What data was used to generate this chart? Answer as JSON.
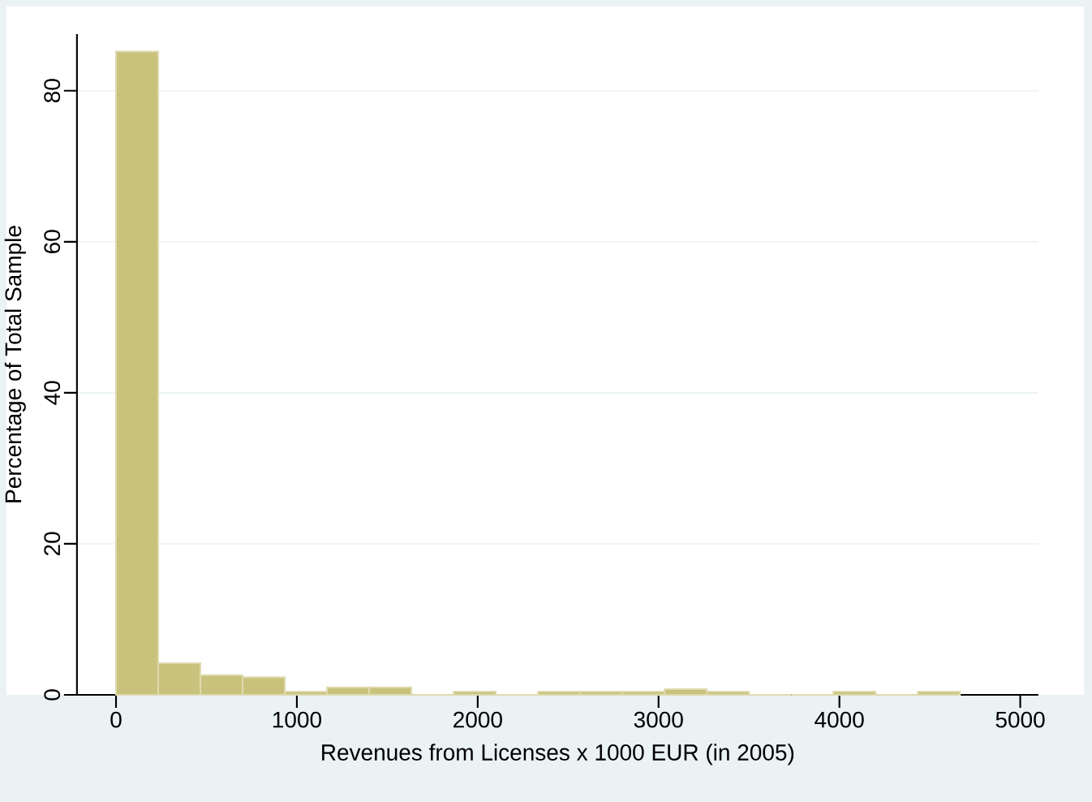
{
  "chart_data": {
    "type": "histogram",
    "xlabel": "Revenues from Licenses x 1000 EUR (in 2005)",
    "ylabel": "Percentage of Total Sample",
    "bins": [
      0,
      233.3,
      466.7,
      700,
      933.3,
      1166.7,
      1400,
      1633.3,
      1866.7,
      2100,
      2333.3,
      2566.7,
      2800,
      3033.3,
      3266.7,
      3500,
      3733.3,
      3966.7,
      4200,
      4433.3,
      4666.7
    ],
    "values": [
      85.2,
      4.2,
      2.6,
      2.35,
      0.43,
      1.0,
      1.0,
      0,
      0.43,
      0,
      0.43,
      0.43,
      0.43,
      0.75,
      0.43,
      0,
      0,
      0.43,
      0,
      0.43
    ],
    "color": "#c9c27c",
    "xlim": [
      -216,
      5100
    ],
    "ylim": [
      0,
      87.5
    ],
    "xticks": [
      0,
      1000,
      2000,
      3000,
      4000,
      5000
    ],
    "yticks": [
      0,
      20,
      40,
      60,
      80
    ],
    "grid": "y"
  }
}
